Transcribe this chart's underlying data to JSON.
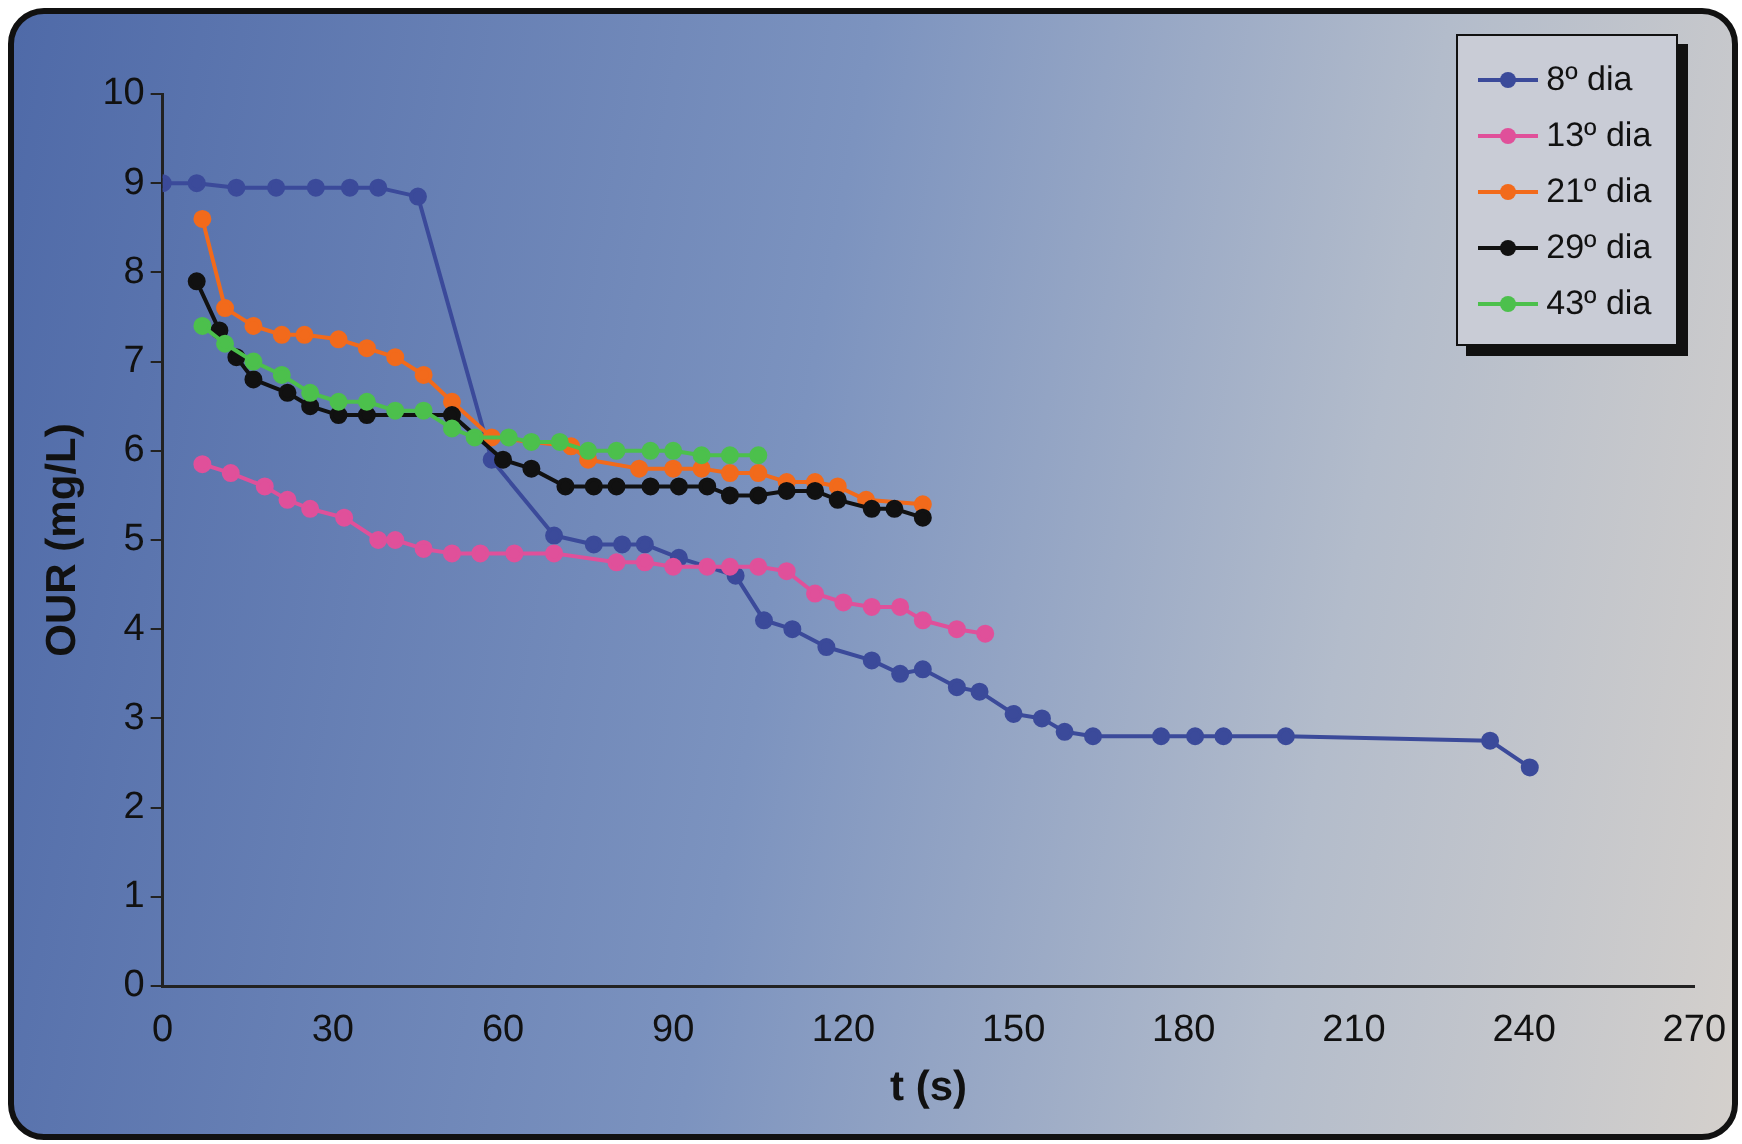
{
  "chart_data": {
    "type": "line",
    "xlabel": "t (s)",
    "ylabel": "OUR (mg/L)",
    "xlim": [
      0,
      270
    ],
    "xticks": [
      0,
      30,
      60,
      90,
      120,
      150,
      180,
      210,
      240,
      270
    ],
    "ylim": [
      0,
      10
    ],
    "yticks": [
      0,
      1,
      2,
      3,
      4,
      5,
      6,
      7,
      8,
      9,
      10
    ],
    "grid": false,
    "legend": "top right",
    "marker": "circle",
    "line_style": "solid",
    "series": [
      {
        "name": "8º dia",
        "color": "#3b4a9a",
        "x": [
          0,
          6,
          13,
          20,
          27,
          33,
          38,
          45,
          58,
          69,
          76,
          81,
          85,
          91,
          101,
          106,
          111,
          117,
          125,
          130,
          134,
          140,
          144,
          150,
          155,
          159,
          164,
          176,
          182,
          187,
          198,
          234,
          241
        ],
        "values": [
          9.0,
          9.0,
          8.95,
          8.95,
          8.95,
          8.95,
          8.95,
          8.85,
          5.9,
          5.05,
          4.95,
          4.95,
          4.95,
          4.8,
          4.6,
          4.1,
          4.0,
          3.8,
          3.65,
          3.5,
          3.55,
          3.35,
          3.3,
          3.05,
          3.0,
          2.85,
          2.8,
          2.8,
          2.8,
          2.8,
          2.8,
          2.75,
          2.45
        ]
      },
      {
        "name": "13º dia",
        "color": "#e0509a",
        "x": [
          7,
          12,
          18,
          22,
          26,
          32,
          38,
          41,
          46,
          51,
          56,
          62,
          69,
          80,
          85,
          90,
          96,
          100,
          105,
          110,
          115,
          120,
          125,
          130,
          134,
          140,
          145
        ],
        "values": [
          5.85,
          5.75,
          5.6,
          5.45,
          5.35,
          5.25,
          5.0,
          5.0,
          4.9,
          4.85,
          4.85,
          4.85,
          4.85,
          4.75,
          4.75,
          4.7,
          4.7,
          4.7,
          4.7,
          4.65,
          4.4,
          4.3,
          4.25,
          4.25,
          4.1,
          4.0,
          3.95
        ]
      },
      {
        "name": "21º dia",
        "color": "#f26a1b",
        "x": [
          7,
          11,
          16,
          21,
          25,
          31,
          36,
          41,
          46,
          51,
          58,
          72,
          75,
          84,
          90,
          95,
          100,
          105,
          110,
          115,
          119,
          124,
          134
        ],
        "values": [
          8.6,
          7.6,
          7.4,
          7.3,
          7.3,
          7.25,
          7.15,
          7.05,
          6.85,
          6.55,
          6.15,
          6.05,
          5.9,
          5.8,
          5.8,
          5.8,
          5.75,
          5.75,
          5.65,
          5.65,
          5.6,
          5.45,
          5.4
        ]
      },
      {
        "name": "29º dia",
        "color": "#111111",
        "x": [
          6,
          10,
          13,
          16,
          22,
          26,
          31,
          36,
          51,
          60,
          65,
          71,
          76,
          80,
          86,
          91,
          96,
          100,
          105,
          110,
          115,
          119,
          125,
          129,
          134
        ],
        "values": [
          7.9,
          7.35,
          7.05,
          6.8,
          6.65,
          6.5,
          6.4,
          6.4,
          6.4,
          5.9,
          5.8,
          5.6,
          5.6,
          5.6,
          5.6,
          5.6,
          5.6,
          5.5,
          5.5,
          5.55,
          5.55,
          5.45,
          5.35,
          5.35,
          5.25
        ]
      },
      {
        "name": "43º dia",
        "color": "#4cc04c",
        "x": [
          7,
          11,
          16,
          21,
          26,
          31,
          36,
          41,
          46,
          51,
          55,
          61,
          65,
          70,
          75,
          80,
          86,
          90,
          95,
          100,
          105
        ],
        "values": [
          7.4,
          7.2,
          7.0,
          6.85,
          6.65,
          6.55,
          6.55,
          6.45,
          6.45,
          6.25,
          6.15,
          6.15,
          6.1,
          6.1,
          6.0,
          6.0,
          6.0,
          6.0,
          5.95,
          5.95,
          5.95
        ]
      }
    ]
  }
}
